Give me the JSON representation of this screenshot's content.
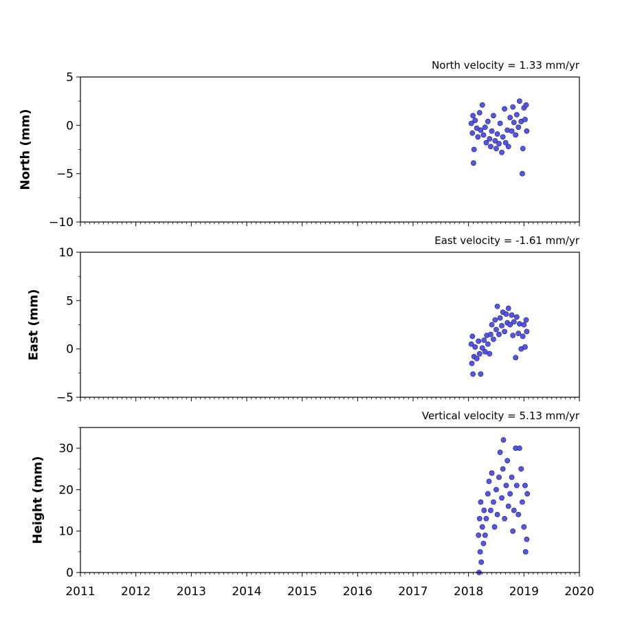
{
  "chart_data": [
    {
      "type": "scatter",
      "title": "North velocity = 1.33 mm/yr",
      "y_label": "North (mm)",
      "color": "#5454f2",
      "edge_color": "#1a1a4a",
      "xlim": [
        2011,
        2020
      ],
      "xticks": [
        2011,
        2012,
        2013,
        2014,
        2015,
        2016,
        2017,
        2018,
        2019,
        2020
      ],
      "show_xtick_labels": false,
      "ylim": [
        -10,
        5
      ],
      "yticks": [
        {
          "value": -10,
          "label": "−10"
        },
        {
          "value": -5,
          "label": "−5"
        },
        0,
        5
      ],
      "x": [
        2018.05,
        2018.07,
        2018.08,
        2018.09,
        2018.1,
        2018.12,
        2018.15,
        2018.17,
        2018.2,
        2018.22,
        2018.25,
        2018.27,
        2018.3,
        2018.32,
        2018.35,
        2018.38,
        2018.4,
        2018.42,
        2018.45,
        2018.48,
        2018.5,
        2018.52,
        2018.55,
        2018.57,
        2018.6,
        2018.62,
        2018.65,
        2018.67,
        2018.7,
        2018.72,
        2018.75,
        2018.78,
        2018.8,
        2018.82,
        2018.85,
        2018.87,
        2018.9,
        2018.92,
        2018.95,
        2018.97,
        2018.98,
        2019.0,
        2019.02,
        2019.04,
        2019.05
      ],
      "values": [
        0.2,
        -0.8,
        1.0,
        -3.9,
        -2.5,
        0.5,
        -0.3,
        -1.2,
        1.3,
        -0.5,
        2.1,
        -1.0,
        -0.2,
        -1.8,
        0.4,
        -1.4,
        -2.2,
        -0.6,
        1.0,
        -1.6,
        -2.4,
        -0.9,
        -1.9,
        0.2,
        -2.8,
        -1.2,
        1.7,
        -1.8,
        -0.5,
        -2.2,
        0.8,
        -0.6,
        1.9,
        0.3,
        -1.0,
        1.1,
        -0.2,
        2.5,
        0.4,
        -5.0,
        -2.4,
        1.8,
        0.6,
        2.1,
        -0.6
      ]
    },
    {
      "type": "scatter",
      "title": "East velocity = -1.61 mm/yr",
      "y_label": "East (mm)",
      "color": "#5454f2",
      "edge_color": "#1a1a4a",
      "xlim": [
        2011,
        2020
      ],
      "xticks": [
        2011,
        2012,
        2013,
        2014,
        2015,
        2016,
        2017,
        2018,
        2019,
        2020
      ],
      "show_xtick_labels": false,
      "ylim": [
        -5,
        10
      ],
      "yticks": [
        {
          "value": -5,
          "label": "−5"
        },
        0,
        5,
        10
      ],
      "x": [
        2018.05,
        2018.06,
        2018.07,
        2018.08,
        2018.1,
        2018.12,
        2018.15,
        2018.18,
        2018.2,
        2018.22,
        2018.25,
        2018.28,
        2018.3,
        2018.33,
        2018.35,
        2018.38,
        2018.4,
        2018.42,
        2018.45,
        2018.48,
        2018.5,
        2018.52,
        2018.55,
        2018.57,
        2018.6,
        2018.62,
        2018.65,
        2018.68,
        2018.7,
        2018.72,
        2018.75,
        2018.78,
        2018.8,
        2018.82,
        2018.85,
        2018.87,
        2018.9,
        2018.92,
        2018.95,
        2018.98,
        2019.0,
        2019.02,
        2019.04,
        2019.05
      ],
      "values": [
        0.5,
        -1.5,
        1.3,
        -2.6,
        -0.8,
        0.2,
        -1.0,
        0.8,
        -0.5,
        -2.6,
        0.1,
        0.9,
        -0.3,
        1.4,
        0.5,
        -0.5,
        1.5,
        2.5,
        1.0,
        3.0,
        2.0,
        4.4,
        1.5,
        3.2,
        2.4,
        3.8,
        1.8,
        3.6,
        2.7,
        4.2,
        2.5,
        3.5,
        1.4,
        2.8,
        -0.9,
        3.3,
        1.6,
        2.6,
        0.0,
        1.3,
        2.5,
        0.2,
        3.0,
        1.8
      ]
    },
    {
      "type": "scatter",
      "title": "Vertical velocity = 5.13 mm/yr",
      "y_label": "Height (mm)",
      "color": "#5454f2",
      "edge_color": "#1a1a4a",
      "xlim": [
        2011,
        2020
      ],
      "xticks": [
        2011,
        2012,
        2013,
        2014,
        2015,
        2016,
        2017,
        2018,
        2019,
        2020
      ],
      "show_xtick_labels": true,
      "ylim": [
        0,
        35
      ],
      "yticks": [
        0,
        10,
        20,
        30
      ],
      "x": [
        2018.18,
        2018.19,
        2018.2,
        2018.21,
        2018.22,
        2018.23,
        2018.25,
        2018.27,
        2018.28,
        2018.3,
        2018.32,
        2018.35,
        2018.37,
        2018.4,
        2018.42,
        2018.45,
        2018.47,
        2018.5,
        2018.52,
        2018.55,
        2018.57,
        2018.6,
        2018.62,
        2018.63,
        2018.65,
        2018.68,
        2018.7,
        2018.72,
        2018.75,
        2018.78,
        2018.8,
        2018.82,
        2018.85,
        2018.87,
        2018.9,
        2018.92,
        2018.95,
        2018.97,
        2019.0,
        2019.02,
        2019.03,
        2019.05,
        2019.06
      ],
      "values": [
        9,
        0,
        13,
        5,
        17,
        2.5,
        11,
        7,
        15,
        9,
        13,
        19,
        22,
        15,
        24,
        17,
        11,
        20,
        14,
        23,
        29,
        18,
        25,
        32,
        13,
        21,
        27,
        16,
        19,
        23,
        10,
        15,
        30,
        21,
        14,
        30,
        25,
        17,
        11,
        21,
        5,
        8,
        19
      ]
    }
  ]
}
